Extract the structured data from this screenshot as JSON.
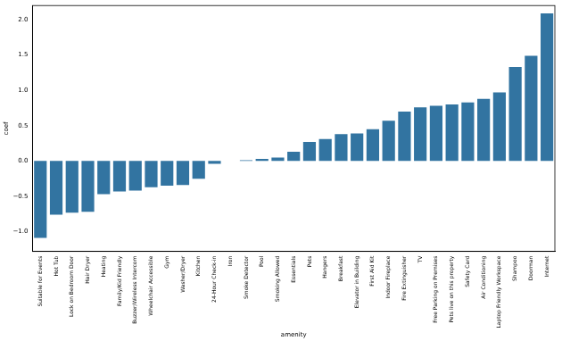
{
  "chart_data": {
    "type": "bar",
    "x_label": "amenity",
    "y_label": "coef",
    "categories": [
      "Suitable for Events",
      "Hot Tub",
      "Lock on Bedroom Door",
      "Hair Dryer",
      "Heating",
      "Family/Kid Friendly",
      "Buzzer/Wireless Intercom",
      "Wheelchair Accessible",
      "Gym",
      "Washer/Dryer",
      "Kitchen",
      "24-Hour Check-in",
      "Iron",
      "Smoke Detector",
      "Pool",
      "Smoking Allowed",
      "Essentials",
      "Pets",
      "Hangers",
      "Breakfast",
      "Elevator in Building",
      "First Aid Kit",
      "Indoor Fireplace",
      "Fire Extinguisher",
      "TV",
      "Free Parking on Premises",
      "Pets live on this property",
      "Safety Card",
      "Air Conditioning",
      "Laptop Friendly Workspace",
      "Shampoo",
      "Doorman",
      "Internet"
    ],
    "values": [
      -1.09,
      -0.76,
      -0.73,
      -0.72,
      -0.47,
      -0.43,
      -0.42,
      -0.37,
      -0.35,
      -0.34,
      -0.25,
      -0.04,
      0.0,
      0.01,
      0.03,
      0.05,
      0.13,
      0.27,
      0.31,
      0.38,
      0.39,
      0.45,
      0.57,
      0.7,
      0.76,
      0.78,
      0.8,
      0.83,
      0.88,
      0.97,
      1.33,
      1.49,
      2.09
    ],
    "color": "#3274a1",
    "ylim": [
      -1.28,
      2.2
    ],
    "yticks": [
      {
        "value": -1,
        "label": "−1.0"
      },
      {
        "value": -0.5,
        "label": "−0.5"
      },
      {
        "value": 0,
        "label": "0.0"
      },
      {
        "value": 0.5,
        "label": "0.5"
      },
      {
        "value": 1,
        "label": "1.0"
      },
      {
        "value": 1.5,
        "label": "1.5"
      },
      {
        "value": 2,
        "label": "2.0"
      }
    ],
    "grid": false
  }
}
